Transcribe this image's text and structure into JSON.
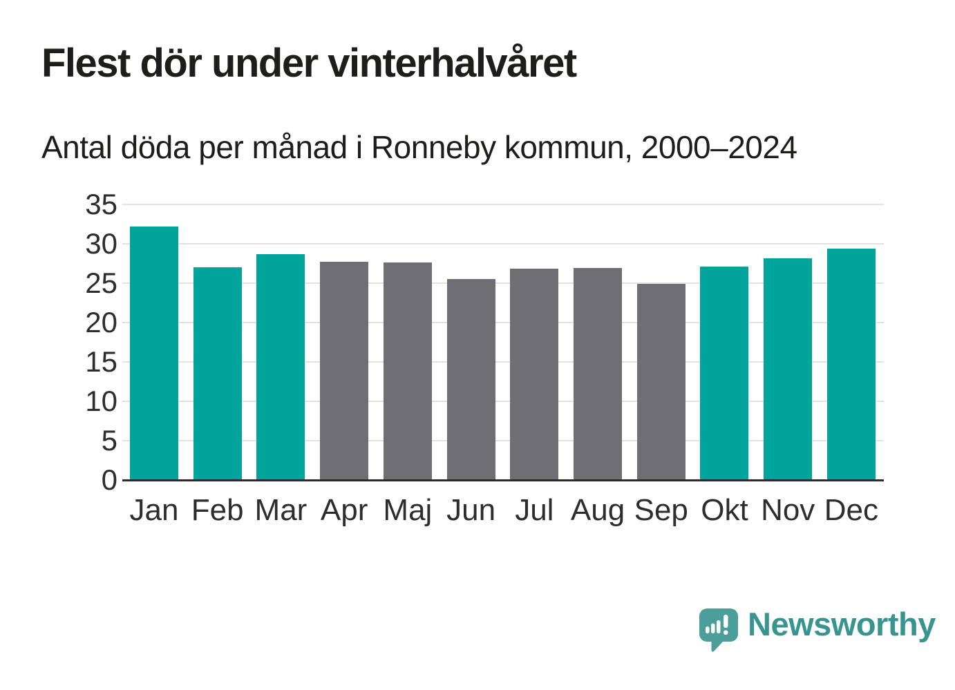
{
  "chart_data": {
    "type": "bar",
    "title": "Flest dör under vinterhalvåret",
    "subtitle": "Antal döda per månad i Ronneby kommun, 2000–2024",
    "categories": [
      "Jan",
      "Feb",
      "Mar",
      "Apr",
      "Maj",
      "Jun",
      "Jul",
      "Aug",
      "Sep",
      "Okt",
      "Nov",
      "Dec"
    ],
    "values": [
      32.2,
      27.0,
      28.7,
      27.7,
      27.6,
      25.5,
      26.8,
      26.9,
      24.9,
      27.1,
      28.2,
      29.4
    ],
    "bar_color_keys": [
      "winter",
      "winter",
      "winter",
      "summer",
      "summer",
      "summer",
      "summer",
      "summer",
      "summer",
      "winter",
      "winter",
      "winter"
    ],
    "colors": {
      "winter": "#00A49A",
      "summer": "#6E6E73"
    },
    "xlabel": "",
    "ylabel": "",
    "ylim": [
      0,
      35
    ],
    "yticks": [
      0,
      5,
      10,
      15,
      20,
      25,
      30,
      35
    ],
    "grid": "horizontal",
    "legend": "none"
  },
  "branding": {
    "logo_text": "Newsworthy",
    "logo_icon": "newsworthy-speech-bubble-chart-icon",
    "icon_color": "#4C9E9B",
    "text_color": "#38948F"
  }
}
